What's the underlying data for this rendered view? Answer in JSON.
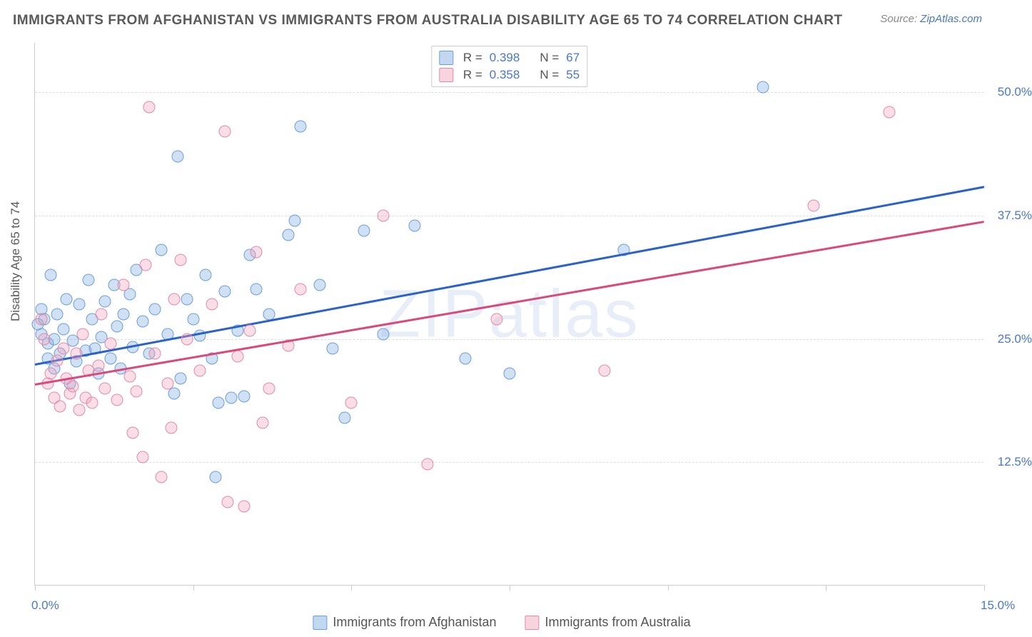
{
  "header": {
    "title": "IMMIGRANTS FROM AFGHANISTAN VS IMMIGRANTS FROM AUSTRALIA DISABILITY AGE 65 TO 74 CORRELATION CHART",
    "source_prefix": "Source: ",
    "source_link": "ZipAtlas.com"
  },
  "y_axis": {
    "label": "Disability Age 65 to 74"
  },
  "watermark": "ZIPatlas",
  "chart": {
    "type": "scatter",
    "xlim": [
      0,
      15
    ],
    "ylim": [
      0,
      55
    ],
    "x_ticks": [
      0,
      2.5,
      5,
      7.5,
      10,
      12.5,
      15
    ],
    "x_tick_labels": {
      "0": "0.0%",
      "15": "15.0%"
    },
    "y_ticks": [
      12.5,
      25,
      37.5,
      50
    ],
    "y_tick_labels": {
      "12.5": "12.5%",
      "25": "25.0%",
      "37.5": "37.5%",
      "50": "50.0%"
    },
    "grid_color": "#dddddd",
    "background_color": "#ffffff",
    "series": [
      {
        "name": "Immigrants from Afghanistan",
        "color_fill": "rgba(120,168,224,0.35)",
        "color_stroke": "#6a9edb",
        "R": "0.398",
        "N": "67",
        "trend": {
          "x1": 0,
          "y1": 22.5,
          "x2": 15,
          "y2": 40.5,
          "color": "#2b62c9",
          "width": 2.5
        },
        "points": [
          [
            0.05,
            26.5
          ],
          [
            0.1,
            28
          ],
          [
            0.1,
            25.5
          ],
          [
            0.15,
            27
          ],
          [
            0.2,
            24.5
          ],
          [
            0.2,
            23
          ],
          [
            0.25,
            31.5
          ],
          [
            0.3,
            22
          ],
          [
            0.3,
            25
          ],
          [
            0.35,
            27.5
          ],
          [
            0.4,
            23.5
          ],
          [
            0.45,
            26
          ],
          [
            0.5,
            29
          ],
          [
            0.55,
            20.5
          ],
          [
            0.6,
            24.8
          ],
          [
            0.65,
            22.7
          ],
          [
            0.7,
            28.5
          ],
          [
            0.8,
            23.8
          ],
          [
            0.85,
            31
          ],
          [
            0.9,
            27
          ],
          [
            0.95,
            24
          ],
          [
            1.0,
            21.5
          ],
          [
            1.05,
            25.2
          ],
          [
            1.1,
            28.8
          ],
          [
            1.2,
            23
          ],
          [
            1.25,
            30.5
          ],
          [
            1.3,
            26.3
          ],
          [
            1.35,
            22
          ],
          [
            1.4,
            27.5
          ],
          [
            1.5,
            29.5
          ],
          [
            1.55,
            24.2
          ],
          [
            1.6,
            32
          ],
          [
            1.7,
            26.8
          ],
          [
            1.8,
            23.5
          ],
          [
            1.9,
            28
          ],
          [
            2.0,
            34
          ],
          [
            2.1,
            25.5
          ],
          [
            2.2,
            19.5
          ],
          [
            2.25,
            43.5
          ],
          [
            2.3,
            21
          ],
          [
            2.4,
            29
          ],
          [
            2.5,
            27
          ],
          [
            2.6,
            25.3
          ],
          [
            2.7,
            31.5
          ],
          [
            2.8,
            23
          ],
          [
            2.85,
            11
          ],
          [
            2.9,
            18.5
          ],
          [
            3.0,
            29.8
          ],
          [
            3.1,
            19
          ],
          [
            3.2,
            25.8
          ],
          [
            3.3,
            19.2
          ],
          [
            3.4,
            33.5
          ],
          [
            3.5,
            30
          ],
          [
            3.7,
            27.5
          ],
          [
            4.0,
            35.5
          ],
          [
            4.1,
            37
          ],
          [
            4.2,
            46.5
          ],
          [
            4.5,
            30.5
          ],
          [
            4.7,
            24
          ],
          [
            4.9,
            17
          ],
          [
            5.2,
            36
          ],
          [
            5.5,
            25.5
          ],
          [
            6.0,
            36.5
          ],
          [
            6.8,
            23
          ],
          [
            7.5,
            21.5
          ],
          [
            9.3,
            34
          ],
          [
            11.5,
            50.5
          ]
        ]
      },
      {
        "name": "Immigrants from Australia",
        "color_fill": "rgba(240,160,185,0.35)",
        "color_stroke": "#e38aa8",
        "R": "0.358",
        "N": "55",
        "trend": {
          "x1": 0,
          "y1": 20.5,
          "x2": 15,
          "y2": 37.0,
          "color": "#d94a7a",
          "width": 2.5
        },
        "points": [
          [
            0.1,
            27
          ],
          [
            0.15,
            25
          ],
          [
            0.2,
            20.5
          ],
          [
            0.25,
            21.5
          ],
          [
            0.3,
            19
          ],
          [
            0.35,
            22.8
          ],
          [
            0.4,
            18.2
          ],
          [
            0.45,
            24
          ],
          [
            0.5,
            21
          ],
          [
            0.55,
            19.5
          ],
          [
            0.6,
            20.2
          ],
          [
            0.65,
            23.5
          ],
          [
            0.7,
            17.8
          ],
          [
            0.75,
            25.5
          ],
          [
            0.8,
            19
          ],
          [
            0.85,
            21.8
          ],
          [
            0.9,
            18.5
          ],
          [
            1.0,
            22.3
          ],
          [
            1.05,
            27.5
          ],
          [
            1.1,
            20
          ],
          [
            1.2,
            24.5
          ],
          [
            1.3,
            18.8
          ],
          [
            1.4,
            30.5
          ],
          [
            1.5,
            21.2
          ],
          [
            1.55,
            15.5
          ],
          [
            1.6,
            19.7
          ],
          [
            1.7,
            13
          ],
          [
            1.75,
            32.5
          ],
          [
            1.8,
            48.5
          ],
          [
            1.9,
            23.5
          ],
          [
            2.0,
            11
          ],
          [
            2.1,
            20.5
          ],
          [
            2.15,
            16
          ],
          [
            2.2,
            29
          ],
          [
            2.3,
            33
          ],
          [
            2.4,
            25
          ],
          [
            2.6,
            21.8
          ],
          [
            2.8,
            28.5
          ],
          [
            3.0,
            46
          ],
          [
            3.05,
            8.5
          ],
          [
            3.2,
            23.2
          ],
          [
            3.3,
            8
          ],
          [
            3.4,
            25.8
          ],
          [
            3.5,
            33.8
          ],
          [
            3.6,
            16.5
          ],
          [
            3.7,
            20
          ],
          [
            4.0,
            24.3
          ],
          [
            4.2,
            30
          ],
          [
            5.0,
            18.5
          ],
          [
            5.5,
            37.5
          ],
          [
            6.2,
            12.3
          ],
          [
            7.3,
            27
          ],
          [
            9.0,
            21.8
          ],
          [
            12.3,
            38.5
          ],
          [
            13.5,
            48
          ]
        ]
      }
    ]
  },
  "legend_bottom": {
    "items": [
      "Immigrants from Afghanistan",
      "Immigrants from Australia"
    ]
  }
}
